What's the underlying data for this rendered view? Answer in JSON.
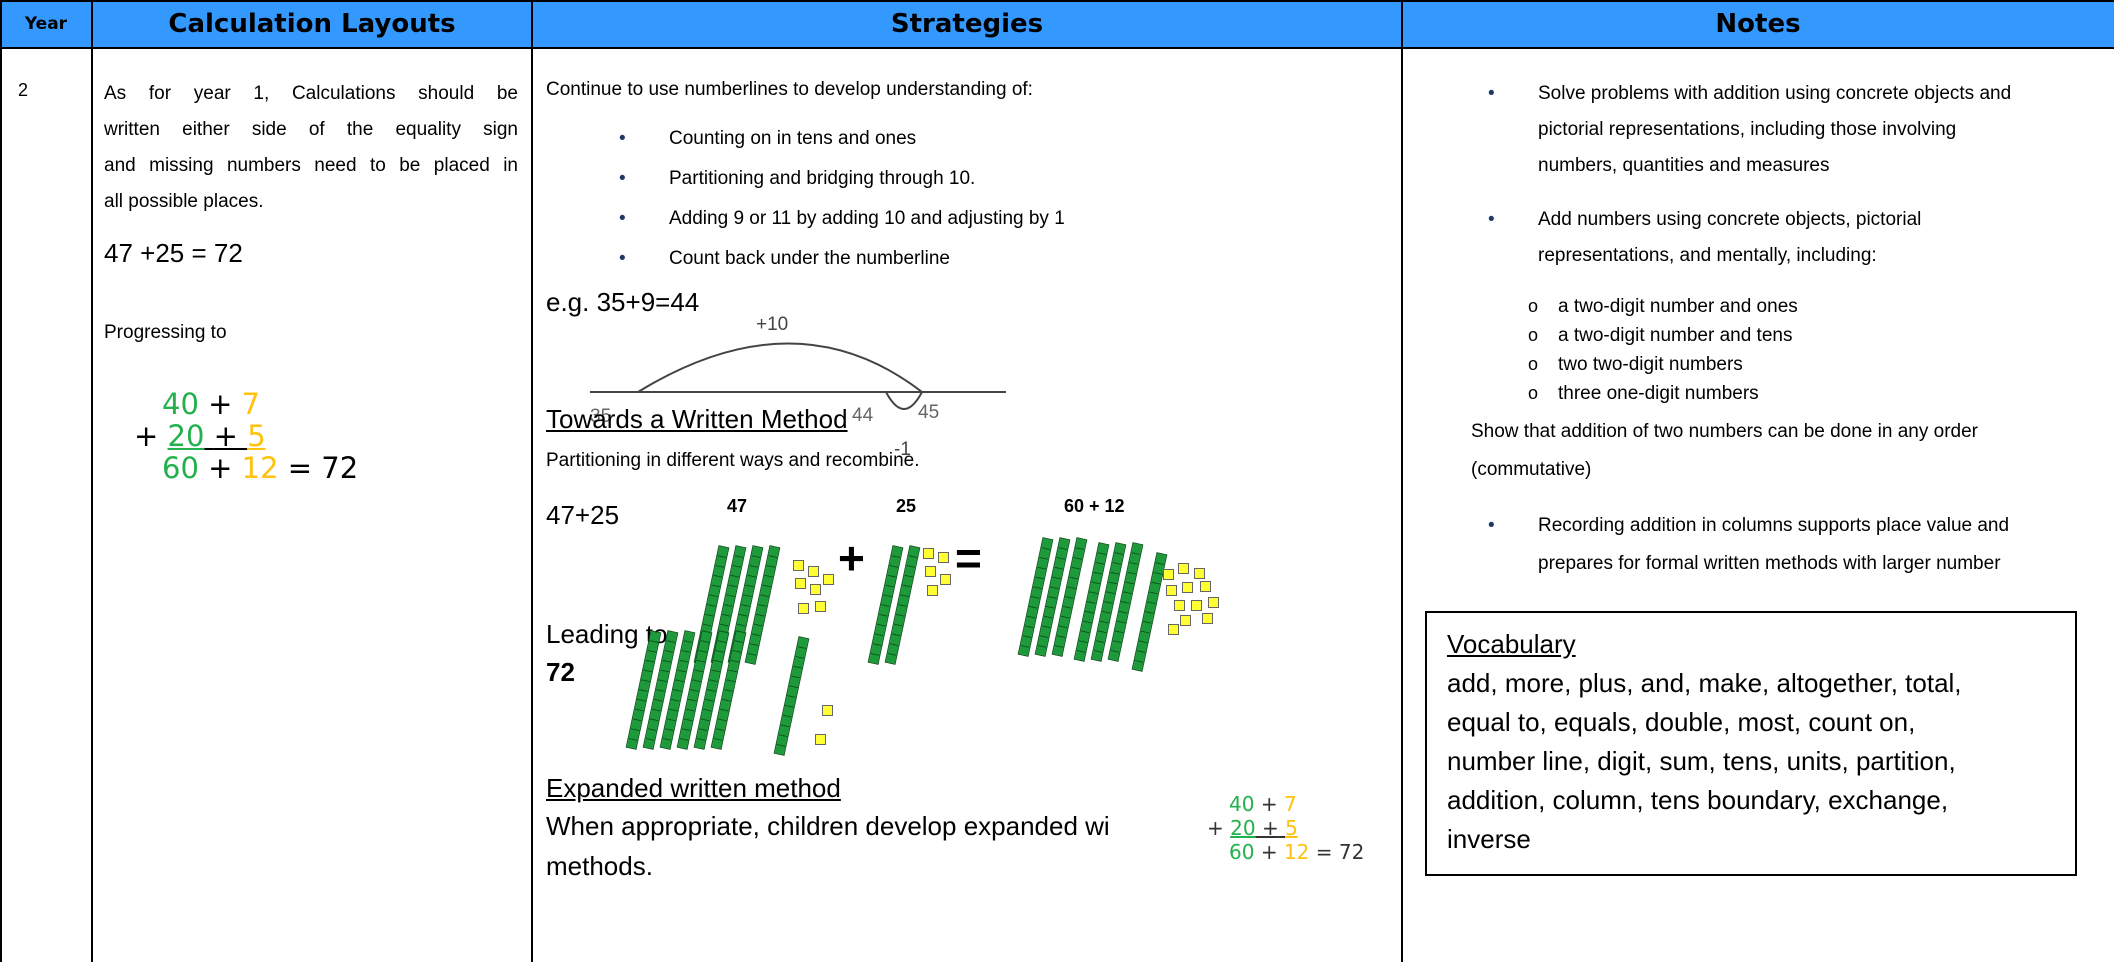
{
  "headers": {
    "year": "Year",
    "layouts": "Calculation Layouts",
    "strategies": "Strategies",
    "notes": "Notes"
  },
  "year_value": "2",
  "layouts": {
    "para": [
      "As for year 1, Calculations should be",
      "written either side of the equality sign",
      "and missing numbers need to be placed in",
      "all possible places."
    ],
    "equation": "47 +25 = 72",
    "progressing": "Progressing to",
    "expanded": {
      "t1": "40",
      "o1": "7",
      "plus": "+",
      "t2": "20",
      "o2": "5",
      "t3": "60",
      "o3": "12",
      "eq": "= 72"
    }
  },
  "strategies": {
    "intro": "Continue to use numberlines to develop understanding of:",
    "bullets": [
      "Counting on in tens and ones",
      "Partitioning and bridging through 10.",
      "Adding 9 or 11 by adding 10 and adjusting by 1",
      "Count back under the numberline"
    ],
    "eg": "e.g.  35+9=44",
    "numberline": {
      "plus10": "+10",
      "n35": "35",
      "n44": "44",
      "n45": "45",
      "minus1": "-1"
    },
    "towards_heading": "Towards a Written Method",
    "partitioning": "Partitioning in different ways and recombine.",
    "sum": "47+25",
    "labels": {
      "a": "47",
      "b": "25",
      "c": "60 + 12"
    },
    "ops": {
      "plus": "+",
      "equals": "="
    },
    "leading": "Leading to",
    "result": "72",
    "expanded_heading": "Expanded written method",
    "expanded_text": [
      "When appropriate, children develop expanded wi",
      "methods."
    ],
    "expanded": {
      "t1": "40",
      "o1": "7",
      "plus": "+",
      "t2": "20",
      "o2": "5",
      "t3": "60",
      "o3": "12",
      "eq": "= 72"
    }
  },
  "notes": {
    "b1": [
      "Solve problems with addition using concrete objects and",
      "pictorial representations, including those involving",
      "numbers, quantities and measures"
    ],
    "b2": [
      "Add numbers using concrete objects, pictorial",
      "representations, and mentally, including:"
    ],
    "subs": [
      "a two-digit number and ones",
      "a two-digit number and tens",
      "two two-digit numbers",
      "three one-digit numbers"
    ],
    "show": [
      "Show that addition of two numbers can be done in any order",
      "(commutative)"
    ],
    "b3": [
      "Recording addition in columns supports place value and",
      "prepares for formal written methods with larger number"
    ],
    "vocab_title": "Vocabulary",
    "vocab_lines": [
      "add, more, plus, and, make, altogether, total,",
      "equal to, equals, double, most, count on,",
      "number line, digit, sum, tens, units, partition,",
      "addition, column, tens boundary, exchange,",
      "inverse"
    ]
  },
  "colors": {
    "header": "#3399ff",
    "tens": "#22b14c",
    "ones": "#ffc20e",
    "rod": "#1d9a3a",
    "cube": "#ffff33"
  }
}
